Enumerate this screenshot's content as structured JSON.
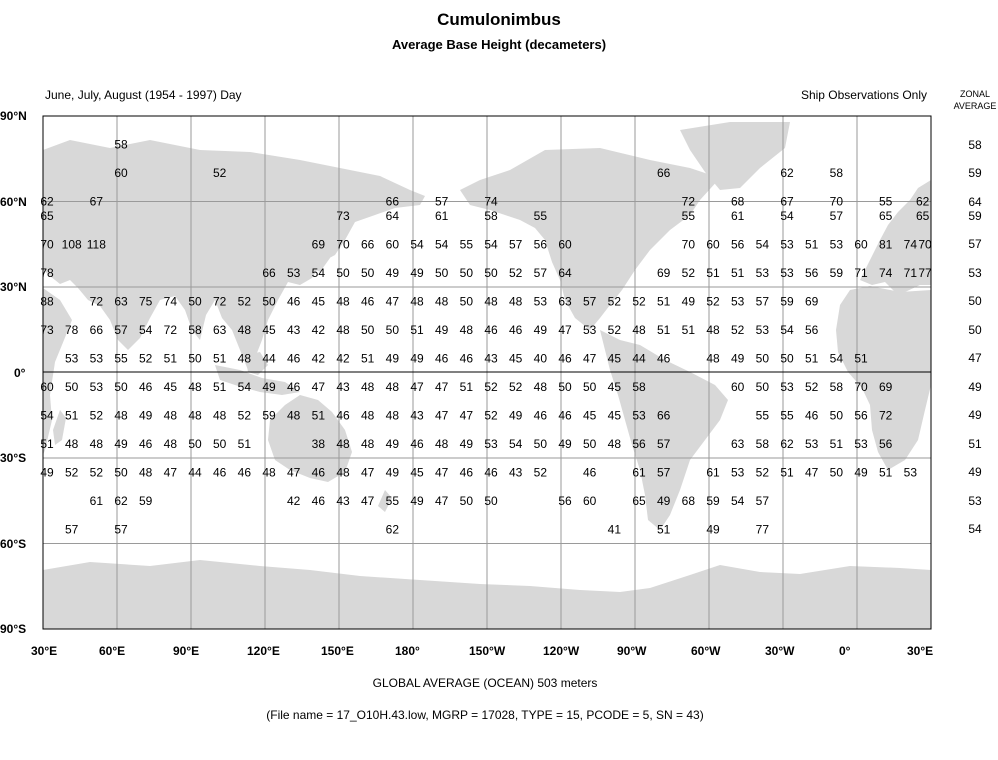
{
  "title": "Cumulonimbus",
  "subtitle": "Average Base Height (decameters)",
  "period": "June, July, August (1954 - 1997) Day",
  "observations": "Ship Observations Only",
  "zonal": {
    "line1": "ZONAL",
    "line2": "AVERAGE",
    "values": [
      "58",
      "59",
      "64",
      "59",
      "57",
      "53",
      "50",
      "50",
      "47",
      "49",
      "49",
      "51",
      "49",
      "53",
      "54"
    ]
  },
  "lat_labels": [
    "90°N",
    "60°N",
    "30°N",
    "0°",
    "30°S",
    "60°S",
    "90°S"
  ],
  "lon_labels": [
    "30°E",
    "60°E",
    "90°E",
    "120°E",
    "150°E",
    "180°",
    "150°W",
    "120°W",
    "90°W",
    "60°W",
    "30°W",
    "0°",
    "30°E"
  ],
  "global_average": "GLOBAL AVERAGE (OCEAN)   503 meters",
  "file_info": "(File name = 17_O10H.43.low, MGRP = 17028, TYPE = 15, PCODE = 5, SN = 43)",
  "colors": {
    "land": "#d8d8d8",
    "grid": "#9a9a9a",
    "border": "#000000"
  },
  "rows": [
    {
      "lat": "80N",
      "cells": [
        [
          60,
          "58"
        ]
      ]
    },
    {
      "lat": "70N",
      "cells": [
        [
          60,
          "60"
        ],
        [
          100,
          "52"
        ],
        [
          280,
          "66"
        ],
        [
          330,
          "62"
        ],
        [
          350,
          "58"
        ]
      ]
    },
    {
      "lat": "60N",
      "cells": [
        [
          30,
          "62"
        ],
        [
          50,
          "67"
        ],
        [
          170,
          "66"
        ],
        [
          190,
          "57"
        ],
        [
          210,
          "74"
        ],
        [
          290,
          "72"
        ],
        [
          310,
          "68"
        ],
        [
          330,
          "67"
        ],
        [
          350,
          "70"
        ],
        [
          10,
          "55"
        ],
        [
          25,
          "62"
        ]
      ]
    },
    {
      "lat": "55N",
      "cells": [
        [
          30,
          "65"
        ],
        [
          150,
          "73"
        ],
        [
          170,
          "64"
        ],
        [
          190,
          "61"
        ],
        [
          210,
          "58"
        ],
        [
          230,
          "55"
        ],
        [
          290,
          "55"
        ],
        [
          310,
          "61"
        ],
        [
          330,
          "54"
        ],
        [
          350,
          "57"
        ],
        [
          10,
          "65"
        ],
        [
          25,
          "65"
        ]
      ]
    },
    {
      "lat": "45N",
      "cells": [
        [
          30,
          "70"
        ],
        [
          40,
          "108"
        ],
        [
          50,
          "118"
        ],
        [
          140,
          "69"
        ],
        [
          150,
          "70"
        ],
        [
          160,
          "66"
        ],
        [
          170,
          "60"
        ],
        [
          180,
          "54"
        ],
        [
          190,
          "54"
        ],
        [
          200,
          "55"
        ],
        [
          210,
          "54"
        ],
        [
          220,
          "57"
        ],
        [
          230,
          "56"
        ],
        [
          240,
          "60"
        ],
        [
          290,
          "70"
        ],
        [
          300,
          "60"
        ],
        [
          310,
          "56"
        ],
        [
          320,
          "54"
        ],
        [
          330,
          "53"
        ],
        [
          340,
          "51"
        ],
        [
          350,
          "53"
        ],
        [
          0,
          "60"
        ],
        [
          10,
          "81"
        ],
        [
          20,
          "74"
        ],
        [
          30,
          "70"
        ]
      ]
    },
    {
      "lat": "35N",
      "cells": [
        [
          30,
          "78"
        ],
        [
          120,
          "66"
        ],
        [
          130,
          "53"
        ],
        [
          140,
          "54"
        ],
        [
          150,
          "50"
        ],
        [
          160,
          "50"
        ],
        [
          170,
          "49"
        ],
        [
          180,
          "49"
        ],
        [
          190,
          "50"
        ],
        [
          200,
          "50"
        ],
        [
          210,
          "50"
        ],
        [
          220,
          "52"
        ],
        [
          230,
          "57"
        ],
        [
          240,
          "64"
        ],
        [
          280,
          "69"
        ],
        [
          290,
          "52"
        ],
        [
          300,
          "51"
        ],
        [
          310,
          "51"
        ],
        [
          320,
          "53"
        ],
        [
          330,
          "53"
        ],
        [
          340,
          "56"
        ],
        [
          350,
          "59"
        ],
        [
          0,
          "71"
        ],
        [
          10,
          "74"
        ],
        [
          20,
          "71"
        ],
        [
          30,
          "77"
        ]
      ]
    },
    {
      "lat": "25N",
      "cells": [
        [
          30,
          "88"
        ],
        [
          50,
          "72"
        ],
        [
          60,
          "63"
        ],
        [
          70,
          "75"
        ],
        [
          80,
          "74"
        ],
        [
          90,
          "50"
        ],
        [
          100,
          "72"
        ],
        [
          110,
          "52"
        ],
        [
          120,
          "50"
        ],
        [
          130,
          "46"
        ],
        [
          140,
          "45"
        ],
        [
          150,
          "48"
        ],
        [
          160,
          "46"
        ],
        [
          170,
          "47"
        ],
        [
          180,
          "48"
        ],
        [
          190,
          "48"
        ],
        [
          200,
          "50"
        ],
        [
          210,
          "48"
        ],
        [
          220,
          "48"
        ],
        [
          230,
          "53"
        ],
        [
          240,
          "63"
        ],
        [
          250,
          "57"
        ],
        [
          260,
          "52"
        ],
        [
          270,
          "52"
        ],
        [
          280,
          "51"
        ],
        [
          290,
          "49"
        ],
        [
          300,
          "52"
        ],
        [
          310,
          "53"
        ],
        [
          320,
          "57"
        ],
        [
          330,
          "59"
        ],
        [
          340,
          "69"
        ]
      ]
    },
    {
      "lat": "15N",
      "cells": [
        [
          30,
          "73"
        ],
        [
          40,
          "78"
        ],
        [
          50,
          "66"
        ],
        [
          60,
          "57"
        ],
        [
          70,
          "54"
        ],
        [
          80,
          "72"
        ],
        [
          90,
          "58"
        ],
        [
          100,
          "63"
        ],
        [
          110,
          "48"
        ],
        [
          120,
          "45"
        ],
        [
          130,
          "43"
        ],
        [
          140,
          "42"
        ],
        [
          150,
          "48"
        ],
        [
          160,
          "50"
        ],
        [
          170,
          "50"
        ],
        [
          180,
          "51"
        ],
        [
          190,
          "49"
        ],
        [
          200,
          "48"
        ],
        [
          210,
          "46"
        ],
        [
          220,
          "46"
        ],
        [
          230,
          "49"
        ],
        [
          240,
          "47"
        ],
        [
          250,
          "53"
        ],
        [
          260,
          "52"
        ],
        [
          270,
          "48"
        ],
        [
          280,
          "51"
        ],
        [
          290,
          "51"
        ],
        [
          300,
          "48"
        ],
        [
          310,
          "52"
        ],
        [
          320,
          "53"
        ],
        [
          330,
          "54"
        ],
        [
          340,
          "56"
        ]
      ]
    },
    {
      "lat": "5N",
      "cells": [
        [
          40,
          "53"
        ],
        [
          50,
          "53"
        ],
        [
          60,
          "55"
        ],
        [
          70,
          "52"
        ],
        [
          80,
          "51"
        ],
        [
          90,
          "50"
        ],
        [
          100,
          "51"
        ],
        [
          110,
          "48"
        ],
        [
          120,
          "44"
        ],
        [
          130,
          "46"
        ],
        [
          140,
          "42"
        ],
        [
          150,
          "42"
        ],
        [
          160,
          "51"
        ],
        [
          170,
          "49"
        ],
        [
          180,
          "49"
        ],
        [
          190,
          "46"
        ],
        [
          200,
          "46"
        ],
        [
          210,
          "43"
        ],
        [
          220,
          "45"
        ],
        [
          230,
          "40"
        ],
        [
          240,
          "46"
        ],
        [
          250,
          "47"
        ],
        [
          260,
          "45"
        ],
        [
          270,
          "44"
        ],
        [
          280,
          "46"
        ],
        [
          300,
          "48"
        ],
        [
          310,
          "49"
        ],
        [
          320,
          "50"
        ],
        [
          330,
          "50"
        ],
        [
          340,
          "51"
        ],
        [
          350,
          "54"
        ],
        [
          0,
          "51"
        ]
      ]
    },
    {
      "lat": "5S",
      "cells": [
        [
          30,
          "60"
        ],
        [
          40,
          "50"
        ],
        [
          50,
          "53"
        ],
        [
          60,
          "50"
        ],
        [
          70,
          "46"
        ],
        [
          80,
          "45"
        ],
        [
          90,
          "48"
        ],
        [
          100,
          "51"
        ],
        [
          110,
          "54"
        ],
        [
          120,
          "49"
        ],
        [
          130,
          "46"
        ],
        [
          140,
          "47"
        ],
        [
          150,
          "43"
        ],
        [
          160,
          "48"
        ],
        [
          170,
          "48"
        ],
        [
          180,
          "47"
        ],
        [
          190,
          "47"
        ],
        [
          200,
          "51"
        ],
        [
          210,
          "52"
        ],
        [
          220,
          "52"
        ],
        [
          230,
          "48"
        ],
        [
          240,
          "50"
        ],
        [
          250,
          "50"
        ],
        [
          260,
          "45"
        ],
        [
          270,
          "58"
        ],
        [
          310,
          "60"
        ],
        [
          320,
          "50"
        ],
        [
          330,
          "53"
        ],
        [
          340,
          "52"
        ],
        [
          350,
          "58"
        ],
        [
          0,
          "70"
        ],
        [
          10,
          "69"
        ]
      ]
    },
    {
      "lat": "15S",
      "cells": [
        [
          30,
          "54"
        ],
        [
          40,
          "51"
        ],
        [
          50,
          "52"
        ],
        [
          60,
          "48"
        ],
        [
          70,
          "49"
        ],
        [
          80,
          "48"
        ],
        [
          90,
          "48"
        ],
        [
          100,
          "48"
        ],
        [
          110,
          "52"
        ],
        [
          120,
          "59"
        ],
        [
          130,
          "48"
        ],
        [
          140,
          "51"
        ],
        [
          150,
          "46"
        ],
        [
          160,
          "48"
        ],
        [
          170,
          "48"
        ],
        [
          180,
          "43"
        ],
        [
          190,
          "47"
        ],
        [
          200,
          "47"
        ],
        [
          210,
          "52"
        ],
        [
          220,
          "49"
        ],
        [
          230,
          "46"
        ],
        [
          240,
          "46"
        ],
        [
          250,
          "45"
        ],
        [
          260,
          "45"
        ],
        [
          270,
          "53"
        ],
        [
          280,
          "66"
        ],
        [
          320,
          "55"
        ],
        [
          330,
          "55"
        ],
        [
          340,
          "46"
        ],
        [
          350,
          "50"
        ],
        [
          0,
          "56"
        ],
        [
          10,
          "72"
        ]
      ]
    },
    {
      "lat": "25S",
      "cells": [
        [
          30,
          "51"
        ],
        [
          40,
          "48"
        ],
        [
          50,
          "48"
        ],
        [
          60,
          "49"
        ],
        [
          70,
          "46"
        ],
        [
          80,
          "48"
        ],
        [
          90,
          "50"
        ],
        [
          100,
          "50"
        ],
        [
          110,
          "51"
        ],
        [
          140,
          "38"
        ],
        [
          150,
          "48"
        ],
        [
          160,
          "48"
        ],
        [
          170,
          "49"
        ],
        [
          180,
          "46"
        ],
        [
          190,
          "48"
        ],
        [
          200,
          "49"
        ],
        [
          210,
          "53"
        ],
        [
          220,
          "54"
        ],
        [
          230,
          "50"
        ],
        [
          240,
          "49"
        ],
        [
          250,
          "50"
        ],
        [
          260,
          "48"
        ],
        [
          270,
          "56"
        ],
        [
          280,
          "57"
        ],
        [
          310,
          "63"
        ],
        [
          320,
          "58"
        ],
        [
          330,
          "62"
        ],
        [
          340,
          "53"
        ],
        [
          350,
          "51"
        ],
        [
          0,
          "53"
        ],
        [
          10,
          "56"
        ]
      ]
    },
    {
      "lat": "35S",
      "cells": [
        [
          30,
          "49"
        ],
        [
          40,
          "52"
        ],
        [
          50,
          "52"
        ],
        [
          60,
          "50"
        ],
        [
          70,
          "48"
        ],
        [
          80,
          "47"
        ],
        [
          90,
          "44"
        ],
        [
          100,
          "46"
        ],
        [
          110,
          "46"
        ],
        [
          120,
          "48"
        ],
        [
          130,
          "47"
        ],
        [
          140,
          "46"
        ],
        [
          150,
          "48"
        ],
        [
          160,
          "47"
        ],
        [
          170,
          "49"
        ],
        [
          180,
          "45"
        ],
        [
          190,
          "47"
        ],
        [
          200,
          "46"
        ],
        [
          210,
          "46"
        ],
        [
          220,
          "43"
        ],
        [
          230,
          "52"
        ],
        [
          250,
          "46"
        ],
        [
          270,
          "61"
        ],
        [
          280,
          "57"
        ],
        [
          300,
          "61"
        ],
        [
          310,
          "53"
        ],
        [
          320,
          "52"
        ],
        [
          330,
          "51"
        ],
        [
          340,
          "47"
        ],
        [
          350,
          "50"
        ],
        [
          0,
          "49"
        ],
        [
          10,
          "51"
        ],
        [
          20,
          "53"
        ]
      ]
    },
    {
      "lat": "45S",
      "cells": [
        [
          50,
          "61"
        ],
        [
          60,
          "62"
        ],
        [
          70,
          "59"
        ],
        [
          130,
          "42"
        ],
        [
          140,
          "46"
        ],
        [
          150,
          "43"
        ],
        [
          160,
          "47"
        ],
        [
          170,
          "55"
        ],
        [
          180,
          "49"
        ],
        [
          190,
          "47"
        ],
        [
          200,
          "50"
        ],
        [
          210,
          "50"
        ],
        [
          240,
          "56"
        ],
        [
          250,
          "60"
        ],
        [
          270,
          "65"
        ],
        [
          280,
          "49"
        ],
        [
          290,
          "68"
        ],
        [
          300,
          "59"
        ],
        [
          310,
          "54"
        ],
        [
          320,
          "57"
        ]
      ]
    },
    {
      "lat": "55S",
      "cells": [
        [
          40,
          "57"
        ],
        [
          60,
          "57"
        ],
        [
          170,
          "62"
        ],
        [
          260,
          "41"
        ],
        [
          280,
          "51"
        ],
        [
          300,
          "49"
        ],
        [
          320,
          "77"
        ]
      ]
    }
  ]
}
